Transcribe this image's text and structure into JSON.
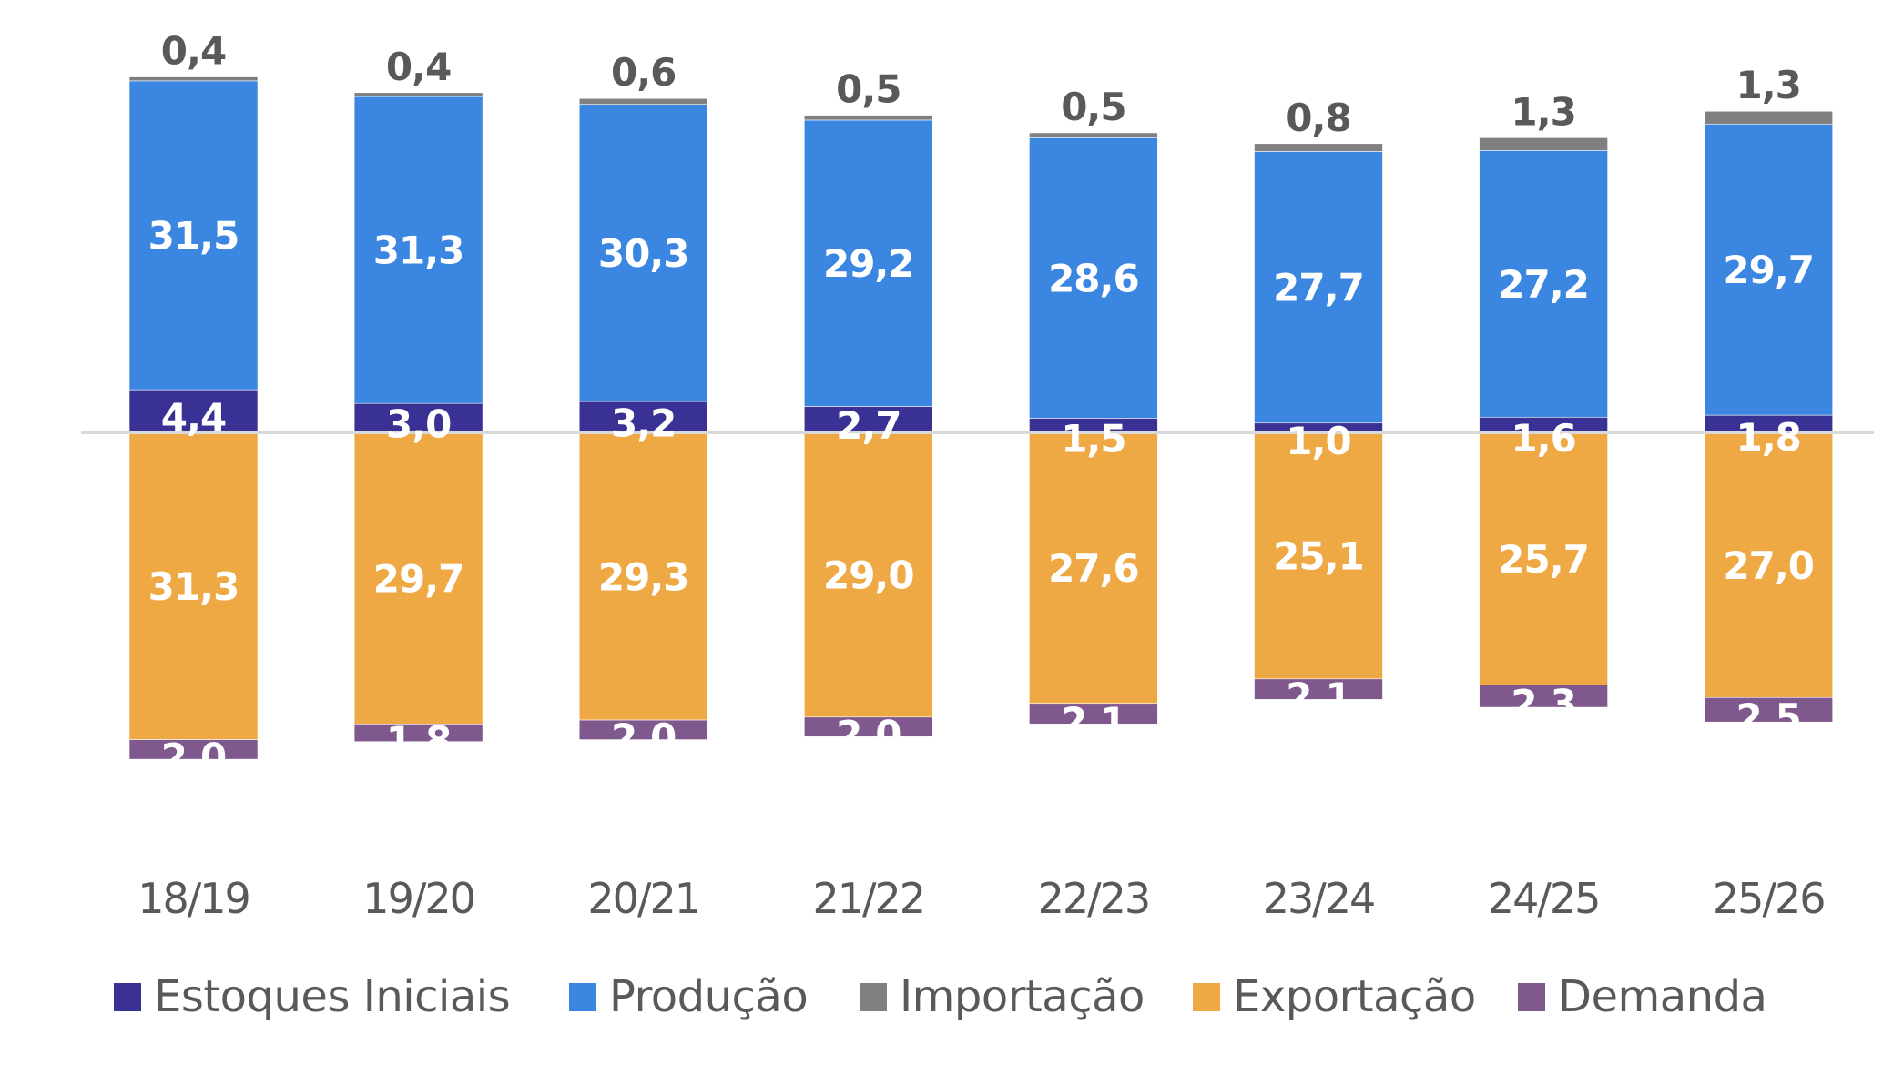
{
  "chart_data": {
    "type": "bar",
    "stacked": true,
    "title": "",
    "xlabel": "",
    "ylabel": "",
    "categories": [
      "18/19",
      "19/20",
      "20/21",
      "21/22",
      "22/23",
      "23/24",
      "24/25",
      "25/26"
    ],
    "series": [
      {
        "name": "Estoques Iniciais",
        "color": "#3A3195",
        "direction": "up",
        "values": [
          4.4,
          3.0,
          3.2,
          2.7,
          1.5,
          1.0,
          1.6,
          1.8
        ],
        "labels": [
          "4,4",
          "3,0",
          "3,2",
          "2,7",
          "1,5",
          "1,0",
          "1,6",
          "1,8"
        ]
      },
      {
        "name": "Produção",
        "color": "#3A86E0",
        "direction": "up",
        "values": [
          31.5,
          31.3,
          30.3,
          29.2,
          28.6,
          27.7,
          27.2,
          29.7
        ],
        "labels": [
          "31,5",
          "31,3",
          "30,3",
          "29,2",
          "28,6",
          "27,7",
          "27,2",
          "29,7"
        ]
      },
      {
        "name": "Importação",
        "color": "#808080",
        "direction": "up",
        "values": [
          0.4,
          0.4,
          0.6,
          0.5,
          0.5,
          0.8,
          1.3,
          1.3
        ],
        "labels": [
          "0,4",
          "0,4",
          "0,6",
          "0,5",
          "0,5",
          "0,8",
          "1,3",
          "1,3"
        ]
      },
      {
        "name": "Exportação",
        "color": "#EEA944",
        "direction": "down",
        "values": [
          31.3,
          29.7,
          29.3,
          29.0,
          27.6,
          25.1,
          25.7,
          27.0
        ],
        "labels": [
          "31,3",
          "29,7",
          "29,3",
          "29,0",
          "27,6",
          "25,1",
          "25,7",
          "27,0"
        ]
      },
      {
        "name": "Demanda",
        "color": "#7F598D",
        "direction": "down",
        "values": [
          2.0,
          1.8,
          2.0,
          2.0,
          2.1,
          2.1,
          2.3,
          2.5
        ],
        "labels": [
          "2,0",
          "1,8",
          "2,0",
          "2,0",
          "2,1",
          "2,1",
          "2,3",
          "2,5"
        ]
      }
    ],
    "ylim": [
      -36,
      36
    ],
    "grid": false,
    "zero_line": true,
    "legend_position": "bottom"
  },
  "legend": {
    "items": [
      "Estoques Iniciais",
      "Produção",
      "Importação",
      "Exportação",
      "Demanda"
    ]
  }
}
